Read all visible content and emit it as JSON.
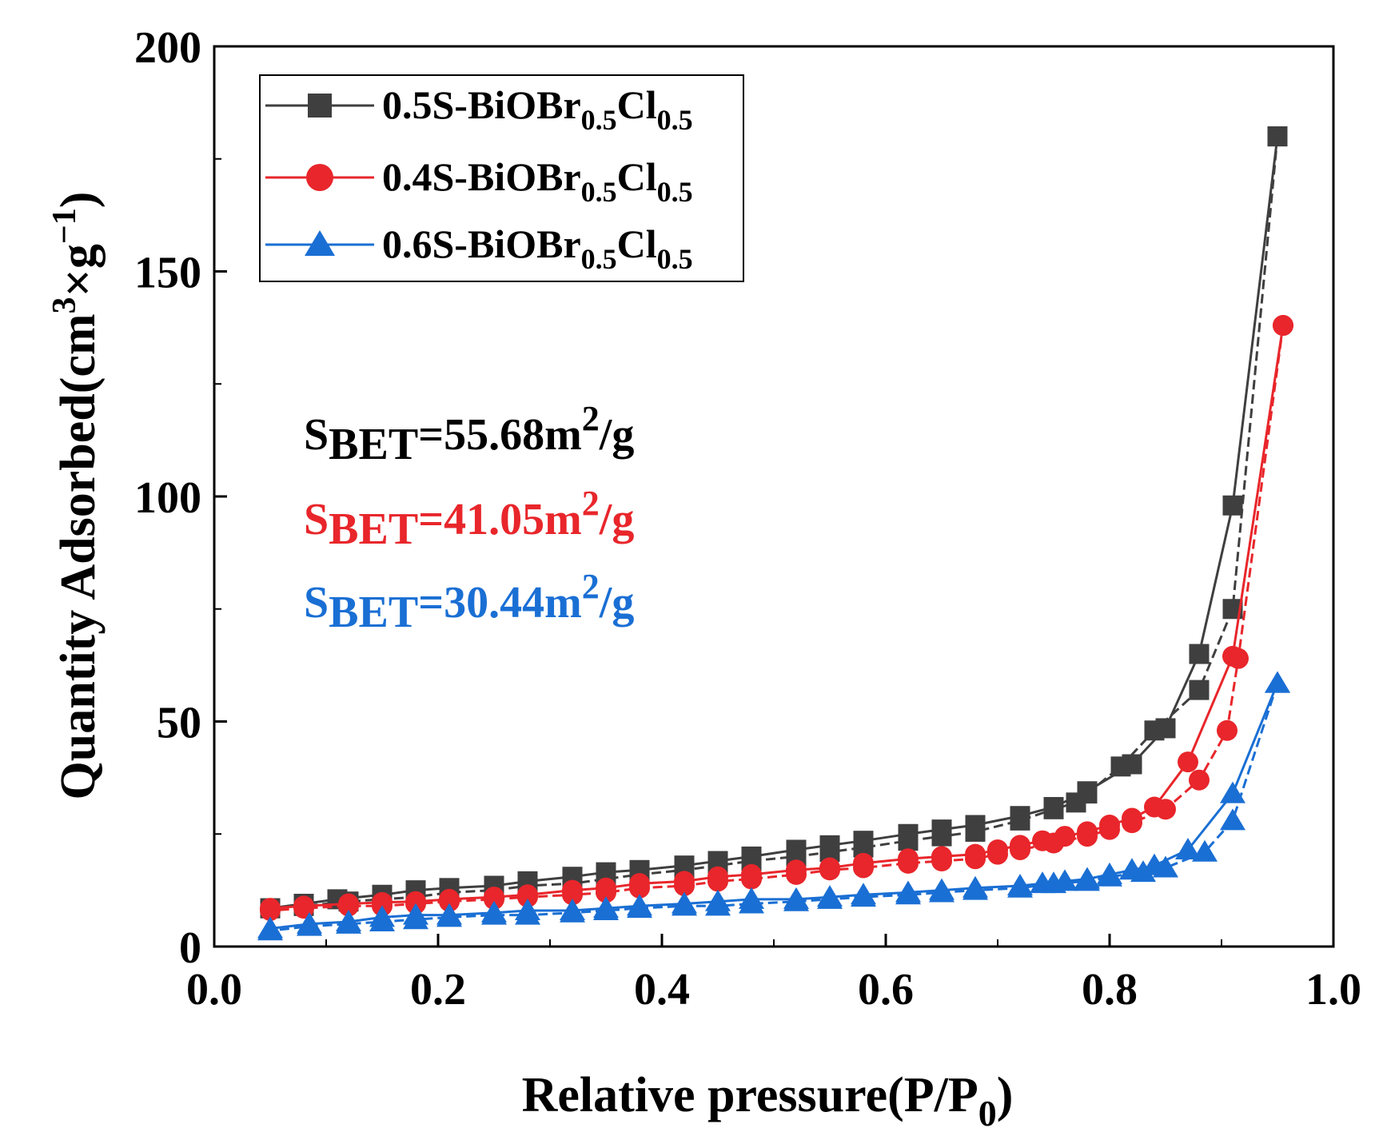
{
  "chart_data": {
    "type": "line",
    "title": "",
    "xlabel": "Relative pressure(P/P",
    "xlabel_sub": "0",
    "xlabel_end": ")",
    "ylabel": "Quantity Adsorbed(cm",
    "ylabel_sup": "3",
    "ylabel_mid": "×g",
    "ylabel_sup2": "−1",
    "ylabel_end": ")",
    "xlim": [
      0.0,
      1.0
    ],
    "ylim": [
      0,
      200
    ],
    "x_ticks": [
      "0.0",
      "0.2",
      "0.4",
      "0.6",
      "0.8",
      "1.0"
    ],
    "y_ticks": [
      "0",
      "50",
      "100",
      "150",
      "200"
    ],
    "grid": false,
    "legend_position": "top-left",
    "series": [
      {
        "name": "0.5S-BiOBr0.5Cl0.5",
        "label_main": "0.5S-BiOBr",
        "label_sub1": "0.5",
        "label_mid": "Cl",
        "label_sub2": "0.5",
        "color": "#3f3f3f",
        "marker": "square",
        "adsorption": {
          "x": [
            0.05,
            0.08,
            0.11,
            0.15,
            0.18,
            0.21,
            0.25,
            0.28,
            0.32,
            0.35,
            0.38,
            0.42,
            0.45,
            0.48,
            0.52,
            0.55,
            0.58,
            0.62,
            0.65,
            0.68,
            0.72,
            0.75,
            0.78,
            0.82,
            0.85,
            0.88,
            0.91,
            0.95
          ],
          "y": [
            8.5,
            9.5,
            10.5,
            11.5,
            12.5,
            13.0,
            13.5,
            14.5,
            15.5,
            16.5,
            17.0,
            18.0,
            19.0,
            20.0,
            21.5,
            22.5,
            23.5,
            25.0,
            26.0,
            27.0,
            29.0,
            31.0,
            34.5,
            40.5,
            48.5,
            65.0,
            98.0,
            180.0
          ]
        },
        "desorption": {
          "x": [
            0.95,
            0.91,
            0.88,
            0.84,
            0.81,
            0.78,
            0.77,
            0.75,
            0.72,
            0.68,
            0.65,
            0.62,
            0.58,
            0.55,
            0.52,
            0.48,
            0.45,
            0.42,
            0.38,
            0.35,
            0.32,
            0.28,
            0.25,
            0.21,
            0.18,
            0.15,
            0.12,
            0.08,
            0.05
          ],
          "y": [
            180.0,
            75.0,
            57.0,
            48.0,
            40.0,
            34.0,
            32.0,
            30.5,
            28.0,
            25.5,
            24.5,
            23.5,
            22.0,
            21.0,
            20.0,
            19.0,
            18.0,
            17.0,
            16.0,
            15.0,
            14.0,
            13.5,
            12.5,
            12.0,
            11.0,
            10.5,
            10.0,
            9.0,
            8.5
          ]
        }
      },
      {
        "name": "0.4S-BiOBr0.5Cl0.5",
        "label_main": "0.4S-BiOBr",
        "label_sub1": "0.5",
        "label_mid": "Cl",
        "label_sub2": "0.5",
        "color": "#e8262b",
        "marker": "circle",
        "adsorption": {
          "x": [
            0.05,
            0.08,
            0.12,
            0.15,
            0.18,
            0.21,
            0.25,
            0.28,
            0.32,
            0.35,
            0.38,
            0.42,
            0.45,
            0.48,
            0.52,
            0.55,
            0.58,
            0.62,
            0.65,
            0.68,
            0.7,
            0.72,
            0.74,
            0.76,
            0.78,
            0.8,
            0.82,
            0.84,
            0.87,
            0.91,
            0.955
          ],
          "y": [
            8.5,
            9.0,
            9.5,
            9.8,
            10.0,
            10.5,
            11.0,
            11.5,
            12.5,
            13.0,
            14.0,
            14.5,
            15.5,
            16.0,
            17.0,
            17.5,
            18.5,
            19.5,
            20.0,
            20.5,
            21.5,
            22.5,
            23.5,
            24.5,
            25.5,
            27.0,
            28.5,
            31.0,
            41.0,
            64.5,
            138.0
          ]
        },
        "desorption": {
          "x": [
            0.955,
            0.915,
            0.905,
            0.88,
            0.85,
            0.82,
            0.8,
            0.78,
            0.75,
            0.72,
            0.7,
            0.68,
            0.65,
            0.62,
            0.58,
            0.55,
            0.52,
            0.48,
            0.45,
            0.42,
            0.38,
            0.35,
            0.32,
            0.28,
            0.25,
            0.21,
            0.18,
            0.15,
            0.12,
            0.08,
            0.05
          ],
          "y": [
            138.0,
            64.0,
            48.0,
            37.0,
            30.5,
            27.5,
            26.0,
            24.5,
            23.0,
            21.5,
            20.5,
            19.5,
            19.0,
            18.5,
            17.5,
            17.0,
            16.0,
            15.0,
            14.5,
            13.5,
            13.0,
            12.0,
            11.5,
            11.0,
            10.5,
            10.0,
            9.5,
            9.0,
            9.0,
            8.5,
            8.0
          ]
        }
      },
      {
        "name": "0.6S-BiOBr0.5Cl0.5",
        "label_main": "0.6S-BiOBr",
        "label_sub1": "0.5",
        "label_mid": "Cl",
        "label_sub2": "0.5",
        "color": "#1a6fd4",
        "marker": "triangle",
        "adsorption": {
          "x": [
            0.05,
            0.085,
            0.12,
            0.15,
            0.18,
            0.21,
            0.25,
            0.28,
            0.32,
            0.35,
            0.38,
            0.42,
            0.45,
            0.48,
            0.52,
            0.55,
            0.58,
            0.62,
            0.65,
            0.68,
            0.72,
            0.74,
            0.76,
            0.78,
            0.8,
            0.82,
            0.84,
            0.87,
            0.91,
            0.95
          ],
          "y": [
            4.0,
            5.0,
            5.5,
            6.5,
            7.0,
            7.0,
            7.5,
            8.0,
            8.0,
            8.5,
            9.0,
            9.5,
            10.0,
            10.5,
            10.5,
            11.0,
            11.5,
            12.0,
            12.5,
            13.0,
            13.5,
            14.0,
            14.5,
            15.0,
            16.0,
            17.0,
            18.0,
            21.5,
            34.0,
            58.5
          ]
        },
        "desorption": {
          "x": [
            0.95,
            0.91,
            0.885,
            0.85,
            0.83,
            0.8,
            0.78,
            0.75,
            0.72,
            0.68,
            0.65,
            0.62,
            0.58,
            0.55,
            0.52,
            0.48,
            0.45,
            0.42,
            0.38,
            0.35,
            0.32,
            0.28,
            0.25,
            0.21,
            0.18,
            0.15,
            0.12,
            0.085,
            0.05
          ],
          "y": [
            58.5,
            28.0,
            21.0,
            17.5,
            16.5,
            15.5,
            14.5,
            14.0,
            13.0,
            12.5,
            12.0,
            11.5,
            11.0,
            10.5,
            10.0,
            9.5,
            9.0,
            9.0,
            8.5,
            8.0,
            7.5,
            7.0,
            7.0,
            6.5,
            6.0,
            5.5,
            5.0,
            4.5,
            3.5
          ]
        }
      }
    ],
    "annotations": [
      {
        "main": "S",
        "sub": "BET",
        "value": "=55.68m",
        "sup": "2",
        "unit": "/g",
        "color": "#000000"
      },
      {
        "main": "S",
        "sub": "BET",
        "value": "=41.05m",
        "sup": "2",
        "unit": "/g",
        "color": "#e8262b"
      },
      {
        "main": "S",
        "sub": "BET",
        "value": "=30.44m",
        "sup": "2",
        "unit": "/g",
        "color": "#1a6fd4"
      }
    ]
  }
}
